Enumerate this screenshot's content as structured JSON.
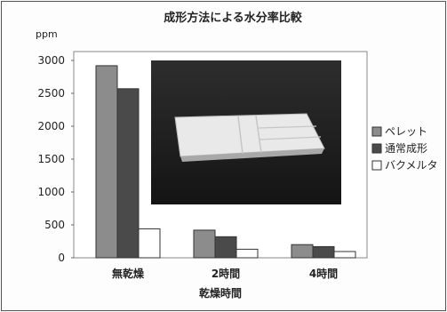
{
  "chart_data": {
    "type": "bar",
    "title": "成形方法による水分率比較",
    "unit": "ppm",
    "xlabel": "乾燥時間",
    "ylabel": "",
    "categories": [
      "無乾燥",
      "2時間",
      "4時間"
    ],
    "series": [
      {
        "name": "ペレット",
        "values": [
          2920,
          420,
          200
        ],
        "color": "#8c8c8c"
      },
      {
        "name": "通常成形",
        "values": [
          2570,
          320,
          170
        ],
        "color": "#4a4a4a"
      },
      {
        "name": "バクメルタ",
        "values": [
          440,
          130,
          95
        ],
        "color": "#ffffff"
      }
    ],
    "ylim": [
      0,
      3000
    ],
    "yticks": [
      0,
      500,
      1000,
      1500,
      2000,
      2500,
      3000
    ],
    "grid": false,
    "legend": "right"
  }
}
